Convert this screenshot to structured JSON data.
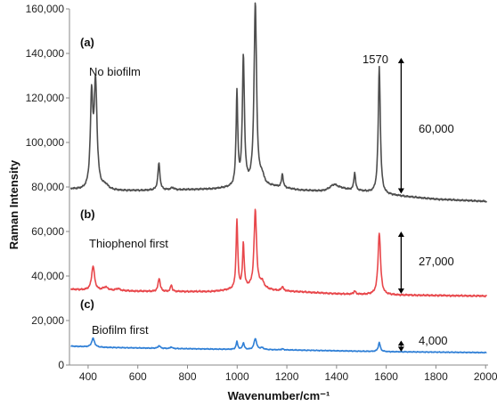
{
  "chart_data": {
    "type": "line",
    "xlabel": "Wavenumber/cm⁻¹",
    "ylabel": "Raman Intensity",
    "xlim": [
      325,
      2010
    ],
    "ylim": [
      0,
      160000
    ],
    "x_ticks": [
      400,
      600,
      800,
      1000,
      1200,
      1400,
      1600,
      1800,
      2000
    ],
    "y_ticks": [
      0,
      20000,
      40000,
      60000,
      80000,
      100000,
      120000,
      140000,
      160000
    ],
    "x_tick_labels": [
      "400",
      "600",
      "800",
      "1000",
      "1200",
      "1400",
      "1600",
      "1800",
      "2000"
    ],
    "y_tick_labels": [
      "0",
      "20,000",
      "40,000",
      "60,000",
      "80,000",
      "100,000",
      "120,000",
      "140,000",
      "160,000"
    ],
    "grid": false,
    "series": [
      {
        "panel": "(a)",
        "label": "No biofilm",
        "color": "#4d4d4d",
        "baseline": 78000,
        "offset": [
          [
            330,
            79000
          ],
          [
            400,
            78000
          ],
          [
            700,
            78500
          ],
          [
            900,
            79000
          ],
          [
            1050,
            80000
          ],
          [
            1150,
            80000
          ],
          [
            1250,
            78500
          ],
          [
            1350,
            78000
          ],
          [
            1420,
            79000
          ],
          [
            1500,
            78000
          ],
          [
            1600,
            76500
          ],
          [
            1800,
            74500
          ],
          [
            2010,
            73500
          ]
        ],
        "peaks": [
          [
            414,
            40000,
            6
          ],
          [
            430,
            47000,
            7
          ],
          [
            470,
            2000,
            15
          ],
          [
            685,
            12000,
            5
          ],
          [
            740,
            1000,
            8
          ],
          [
            999,
            42000,
            4
          ],
          [
            1025,
            58000,
            5
          ],
          [
            1073,
            82000,
            6
          ],
          [
            1100,
            4000,
            10
          ],
          [
            1182,
            6000,
            4
          ],
          [
            1390,
            2500,
            20
          ],
          [
            1473,
            8000,
            4
          ],
          [
            1572,
            57000,
            5
          ]
        ]
      },
      {
        "panel": "(b)",
        "label": "Thiophenol first",
        "color": "#e8474b",
        "baseline": 33000,
        "offset": [
          [
            330,
            34000
          ],
          [
            420,
            33500
          ],
          [
            700,
            33000
          ],
          [
            900,
            33000
          ],
          [
            1050,
            34500
          ],
          [
            1150,
            33500
          ],
          [
            1400,
            32000
          ],
          [
            1600,
            31500
          ],
          [
            2010,
            31000
          ]
        ],
        "peaks": [
          [
            420,
            11000,
            7
          ],
          [
            470,
            1500,
            12
          ],
          [
            520,
            1000,
            10
          ],
          [
            686,
            6000,
            5
          ],
          [
            735,
            3000,
            4
          ],
          [
            999,
            31000,
            4
          ],
          [
            1025,
            20000,
            4
          ],
          [
            1073,
            35000,
            6
          ],
          [
            1100,
            3000,
            10
          ],
          [
            1182,
            2000,
            4
          ],
          [
            1473,
            1500,
            4
          ],
          [
            1572,
            28000,
            6
          ]
        ]
      },
      {
        "panel": "(c)",
        "label": "Biofilm first",
        "color": "#2f7fd6",
        "baseline": 8000,
        "offset": [
          [
            330,
            8500
          ],
          [
            420,
            8000
          ],
          [
            700,
            7500
          ],
          [
            1000,
            7000
          ],
          [
            1200,
            6800
          ],
          [
            1500,
            6200
          ],
          [
            1600,
            6000
          ],
          [
            2010,
            5600
          ]
        ],
        "peaks": [
          [
            420,
            4000,
            7
          ],
          [
            686,
            1200,
            5
          ],
          [
            735,
            700,
            4
          ],
          [
            999,
            3500,
            4
          ],
          [
            1025,
            3000,
            4
          ],
          [
            1073,
            5000,
            6
          ],
          [
            1100,
            800,
            8
          ],
          [
            1182,
            500,
            4
          ],
          [
            1572,
            4000,
            5
          ]
        ]
      }
    ],
    "annotations": {
      "peak_label": "1570",
      "arrow_a_label": "60,000",
      "arrow_b_label": "27,000",
      "arrow_c_label": "4,000",
      "arrow_x": 1660,
      "arrow_a_range": [
        77000,
        138000
      ],
      "arrow_b_range": [
        32000,
        60000
      ],
      "arrow_c_range": [
        6000,
        11000
      ]
    }
  }
}
